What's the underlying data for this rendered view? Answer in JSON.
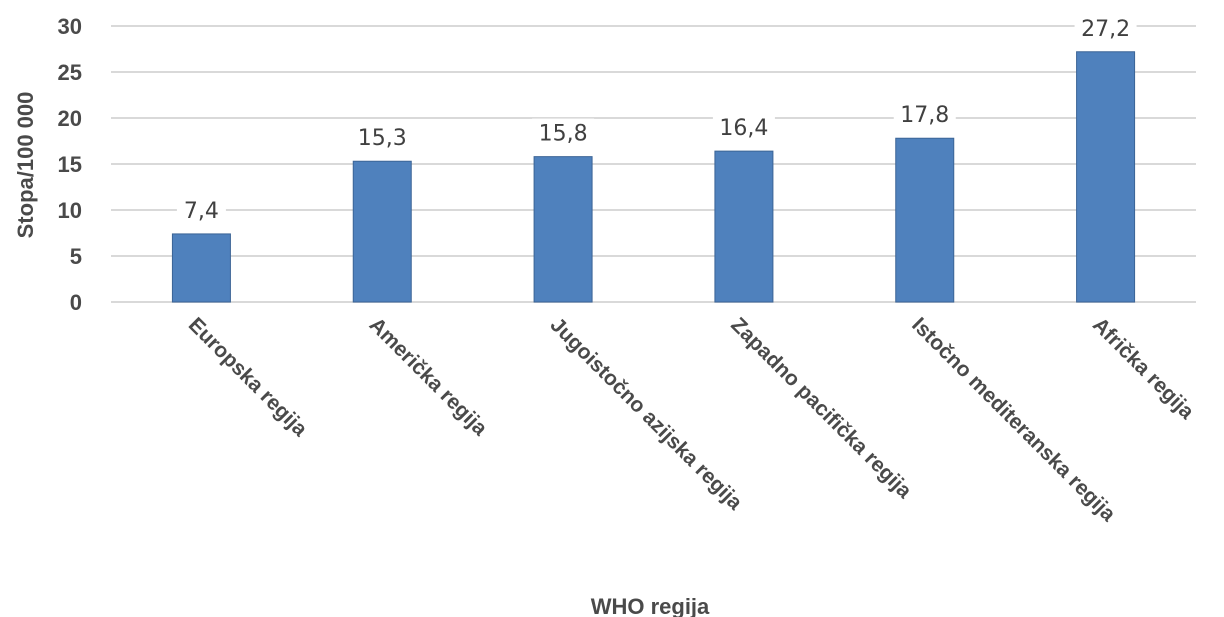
{
  "chart_data": {
    "type": "bar",
    "categories": [
      "Europska regija",
      "Američka regija",
      "Jugoistočno azijska regija",
      "Zapadno pacifička regija",
      "Istočno mediteranska regija",
      "Afrička regija"
    ],
    "values": [
      7.4,
      15.3,
      15.8,
      16.4,
      17.8,
      27.2
    ],
    "data_labels": [
      "7,4",
      "15,3",
      "15,8",
      "16,4",
      "17,8",
      "27,2"
    ],
    "title": "",
    "xlabel": "WHO regija",
    "ylabel": "Stopa/100 000",
    "ylim": [
      0,
      30
    ],
    "yticks": [
      0,
      5,
      10,
      15,
      20,
      25,
      30
    ],
    "grid": true,
    "legend": "none",
    "colors": {
      "bar": "#4f81bd",
      "bar_border": "#3b6496",
      "grid": "#d9d9d9",
      "text": "#4a4a4a"
    }
  }
}
